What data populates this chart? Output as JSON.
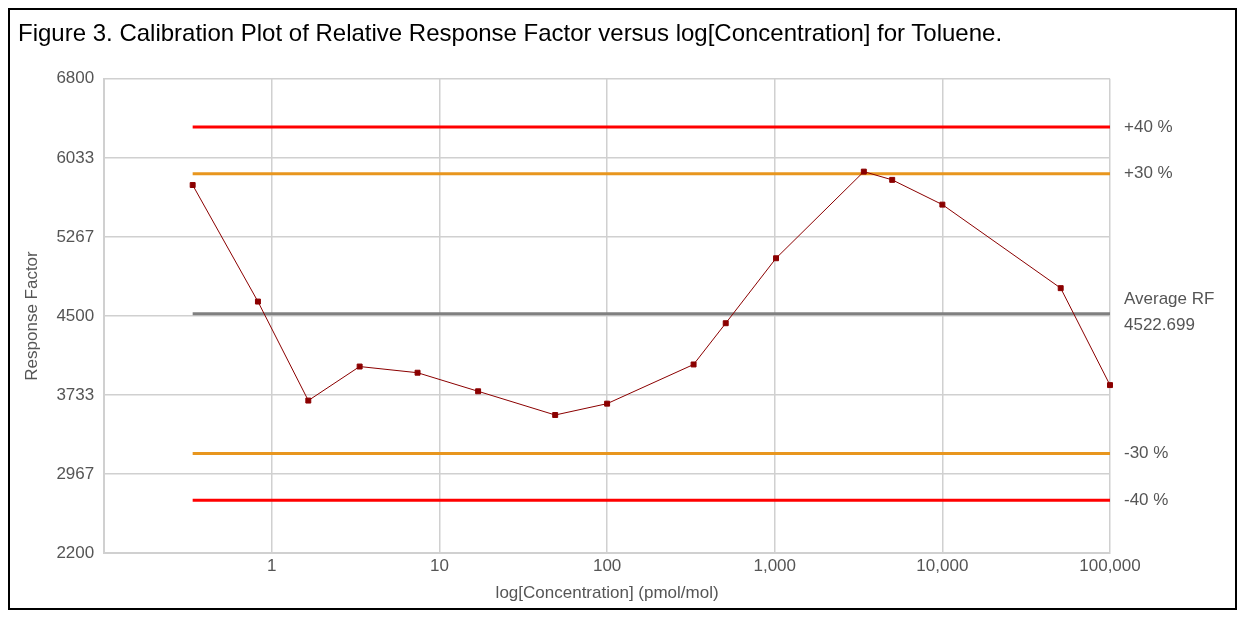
{
  "chart_data": {
    "type": "line",
    "title": "Figure 3. Calibration Plot of Relative Response Factor versus log[Concentration] for Toluene.",
    "xlabel": "log[Concentration] (pmol/mol)",
    "ylabel": "Response Factor",
    "x": [
      0.337,
      0.826,
      1.65,
      3.34,
      7.4,
      17,
      49,
      100,
      328,
      510,
      1018,
      3400,
      5020,
      10000,
      50800,
      100000
    ],
    "series": [
      {
        "color": "#8b0000",
        "values": [
          5770,
          4640,
          3680,
          4010,
          3950,
          3770,
          3540,
          3650,
          4030,
          4430,
          5060,
          5900,
          5820,
          5580,
          4770,
          3830
        ]
      }
    ],
    "log": "x",
    "xlim": [
      0.1,
      100000
    ],
    "xticks": [
      1,
      10,
      100,
      {
        "value": 1000,
        "label": "1,000"
      },
      {
        "value": 10000,
        "label": "10,000"
      },
      {
        "value": 100000,
        "label": "100,000"
      }
    ],
    "ylim": [
      2200,
      6800
    ],
    "yticks": [
      2200,
      2967,
      3733,
      4500,
      5267,
      6033,
      6800
    ],
    "ref_lines": [
      {
        "axis": "y",
        "value": 6332,
        "color": "#ff0000"
      },
      {
        "axis": "y",
        "value": 5880,
        "color": "#e8961e"
      },
      {
        "axis": "y",
        "value": 4522.699,
        "label": "Average RF\n4522.699",
        "color": "#808080"
      },
      {
        "axis": "y",
        "value": 3166,
        "color": "#e8961e"
      },
      {
        "axis": "y",
        "value": 2714,
        "color": "#ff0000"
      }
    ],
    "annotations": [
      "+40 %",
      "+30 %",
      "-30 %",
      "-40 %"
    ],
    "grid": true,
    "legend": false,
    "marker": "square",
    "line_style": "solid"
  }
}
